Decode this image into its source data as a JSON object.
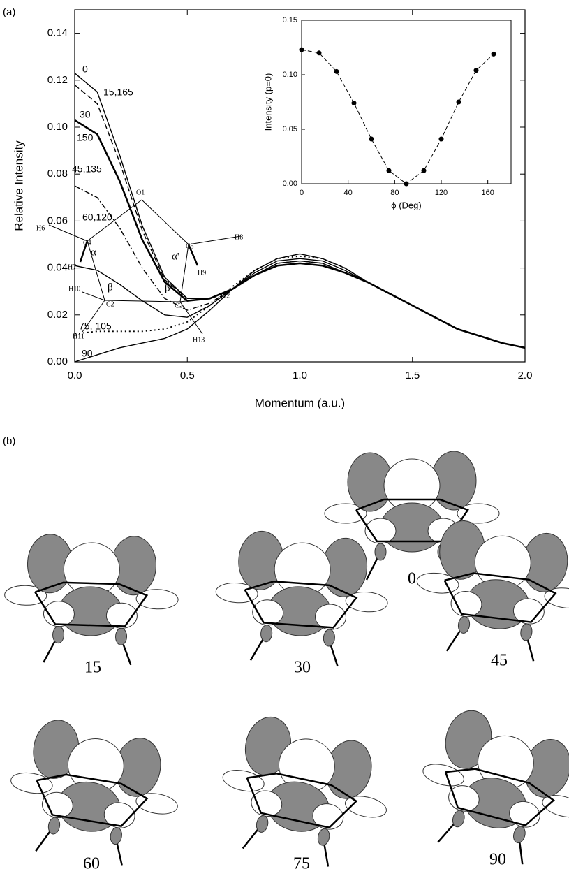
{
  "panels": {
    "a": "(a)",
    "b": "(b)"
  },
  "chart_data": [
    {
      "type": "line",
      "xlabel": "Momentum (a.u.)",
      "ylabel": "Relative Intensity",
      "x": [
        0,
        0.1,
        0.2,
        0.3,
        0.4,
        0.5,
        0.6,
        0.7,
        0.8,
        0.9,
        1.0,
        1.1,
        1.2,
        1.3,
        1.4,
        1.5,
        1.6,
        1.7,
        1.8,
        1.9,
        2.0
      ],
      "xlim": [
        0,
        2.0
      ],
      "ylim": [
        0,
        0.15
      ],
      "xticks": [
        {
          "value": 0,
          "label": "0.0"
        },
        0.5,
        {
          "value": 1,
          "label": "1.0"
        },
        1.5,
        {
          "value": 2,
          "label": "2.0"
        }
      ],
      "yticks": [
        {
          "value": 0,
          "label": "0.00"
        },
        {
          "value": 0.02,
          "label": "0.02"
        },
        {
          "value": 0.04,
          "label": "0.04"
        },
        {
          "value": 0.06,
          "label": "0.06"
        },
        {
          "value": 0.08,
          "label": "0.08"
        },
        {
          "value": 0.1,
          "label": "0.10"
        },
        {
          "value": 0.12,
          "label": "0.12"
        },
        {
          "value": 0.14,
          "label": "0.14"
        }
      ],
      "annotations": [
        "150"
      ],
      "series": [
        {
          "name": "0",
          "color": "#000",
          "style": "solid",
          "values": [
            0.123,
            0.115,
            0.088,
            0.058,
            0.036,
            0.027,
            0.027,
            0.031,
            0.037,
            0.042,
            0.043,
            0.042,
            0.038,
            0.034,
            0.029,
            0.024,
            0.019,
            0.014,
            0.011,
            0.008,
            0.006
          ]
        },
        {
          "name": "15,165",
          "color": "#000",
          "style": "dashed",
          "values": [
            0.118,
            0.11,
            0.085,
            0.056,
            0.035,
            0.027,
            0.027,
            0.031,
            0.037,
            0.041,
            0.042,
            0.041,
            0.038,
            0.034,
            0.029,
            0.024,
            0.019,
            0.014,
            0.011,
            0.008,
            0.006
          ]
        },
        {
          "name": "30",
          "color": "#000",
          "style": "thick",
          "values": [
            0.103,
            0.097,
            0.077,
            0.052,
            0.034,
            0.026,
            0.027,
            0.031,
            0.037,
            0.041,
            0.042,
            0.041,
            0.038,
            0.034,
            0.029,
            0.024,
            0.019,
            0.014,
            0.011,
            0.008,
            0.006
          ]
        },
        {
          "name": "45,135",
          "color": "#000",
          "style": "dashdot",
          "values": [
            0.075,
            0.07,
            0.057,
            0.04,
            0.027,
            0.022,
            0.025,
            0.031,
            0.037,
            0.042,
            0.043,
            0.042,
            0.038,
            0.034,
            0.029,
            0.024,
            0.019,
            0.014,
            0.011,
            0.008,
            0.006
          ]
        },
        {
          "name": "60,120",
          "color": "#000",
          "style": "solid",
          "values": [
            0.041,
            0.039,
            0.033,
            0.026,
            0.02,
            0.019,
            0.024,
            0.031,
            0.038,
            0.043,
            0.044,
            0.043,
            0.039,
            0.034,
            0.029,
            0.024,
            0.019,
            0.014,
            0.011,
            0.008,
            0.006
          ]
        },
        {
          "name": "75, 105",
          "color": "#000",
          "style": "dotted",
          "values": [
            0.012,
            0.013,
            0.013,
            0.013,
            0.014,
            0.017,
            0.024,
            0.032,
            0.039,
            0.044,
            0.045,
            0.044,
            0.04,
            0.034,
            0.029,
            0.024,
            0.019,
            0.014,
            0.011,
            0.008,
            0.006
          ]
        },
        {
          "name": "90",
          "color": "#000",
          "style": "solid",
          "values": [
            0.0,
            0.003,
            0.006,
            0.008,
            0.01,
            0.014,
            0.022,
            0.031,
            0.039,
            0.044,
            0.046,
            0.044,
            0.04,
            0.034,
            0.029,
            0.024,
            0.019,
            0.014,
            0.011,
            0.008,
            0.006
          ]
        }
      ]
    },
    {
      "type": "scatter",
      "xlabel": "ϕ (Deg)",
      "ylabel": "Intensity (p=0)",
      "x": [
        0,
        15,
        30,
        45,
        60,
        75,
        90,
        105,
        120,
        135,
        150,
        165
      ],
      "values": [
        0.123,
        0.12,
        0.103,
        0.074,
        0.041,
        0.012,
        0.0,
        0.012,
        0.041,
        0.075,
        0.104,
        0.119
      ],
      "color": "#000",
      "xlim": [
        0,
        180
      ],
      "ylim": [
        0,
        0.15
      ],
      "xticks": [
        0,
        40,
        80,
        120,
        160
      ],
      "yticks": [
        {
          "value": 0,
          "label": "0.00"
        },
        {
          "value": 0.05,
          "label": "0.05"
        },
        {
          "value": 0.1,
          "label": "0.10"
        },
        {
          "value": 0.15,
          "label": "0.15"
        }
      ]
    }
  ],
  "diagram": {
    "atoms": [
      "O1",
      "H6",
      "C4",
      "C5",
      "H8",
      "α",
      "α'",
      "H7",
      "H9",
      "H10",
      "β",
      "β'",
      "H12",
      "C2",
      "C3",
      "H11",
      "H13"
    ],
    "orbitals": [
      "0",
      "15",
      "30",
      "45",
      "60",
      "75",
      "90"
    ]
  }
}
